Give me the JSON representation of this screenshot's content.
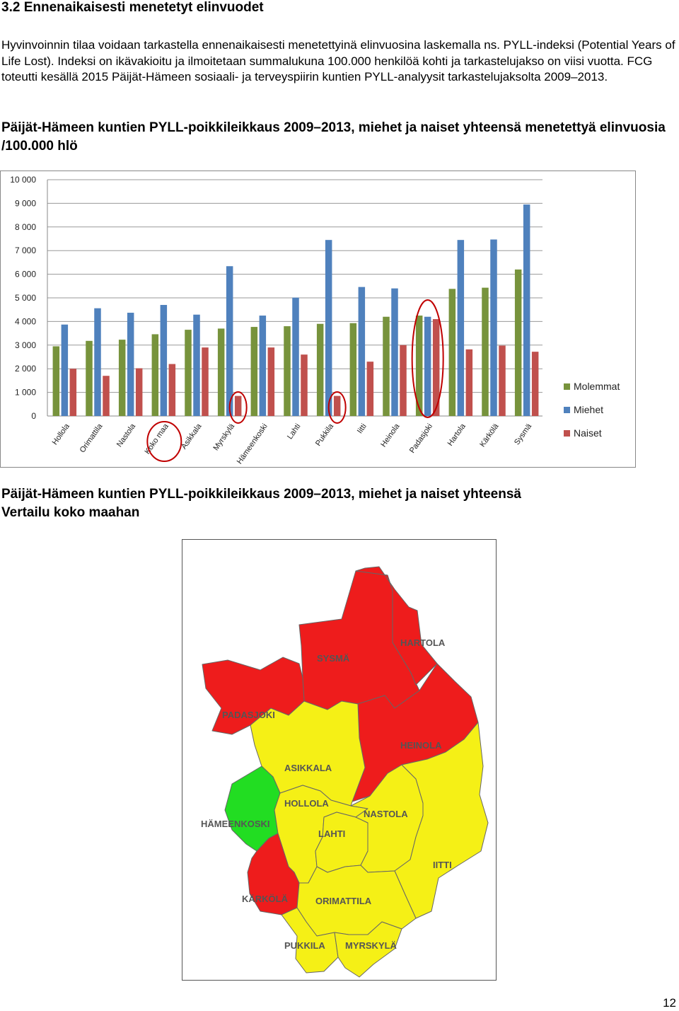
{
  "section": {
    "heading": "3.2 Ennenaikaisesti menetetyt elinvuodet",
    "paragraph": "Hyvinvoinnin tilaa voidaan tarkastella ennenaikaisesti menetettyinä elinvuosina laskemalla ns. PYLL-indeksi (Potential Years of Life Lost). Indeksi on ikävakioitu ja ilmoitetaan summalukuna 100.000 henkilöä kohti ja tarkastelujakso on viisi vuotta.  FCG toteutti kesällä 2015 Päijät-Hämeen sosiaali- ja terveyspiirin kuntien PYLL-analyysit tarkastelujaksolta 2009–2013."
  },
  "figure1": {
    "caption": "Päijät-Hämeen kuntien PYLL-poikkileikkaus 2009–2013, miehet ja naiset yhteensä menetettyä elinvuosia  /100.000 hlö"
  },
  "figure2": {
    "caption_line1": "Päijät-Hämeen kuntien PYLL-poikkileikkaus 2009–2013, miehet ja naiset yhteensä",
    "caption_line2": "Vertailu koko maahan"
  },
  "chart_data": {
    "type": "bar",
    "categories": [
      "Hollola",
      "Orimattila",
      "Nastola",
      "Koko maa",
      "Asikkala",
      "Myrskylä",
      "Hämeenkoski",
      "Lahti",
      "Pukkila",
      "Iitti",
      "Heinola",
      "Padasjoki",
      "Hartola",
      "Kärkölä",
      "Sysmä"
    ],
    "series": [
      {
        "name": "Molemmat",
        "color": "#77933C",
        "values": [
          2950,
          3180,
          3230,
          3460,
          3650,
          3700,
          3770,
          3800,
          3900,
          3930,
          4200,
          4250,
          5380,
          5430,
          6200
        ]
      },
      {
        "name": "Miehet",
        "color": "#4F81BD",
        "values": [
          3870,
          4560,
          4370,
          4700,
          4290,
          6340,
          4250,
          5010,
          7450,
          5460,
          5400,
          4200,
          7450,
          7470,
          8950
        ]
      },
      {
        "name": "Naiset",
        "color": "#C0504D",
        "values": [
          2000,
          1700,
          2020,
          2200,
          2900,
          850,
          2900,
          2600,
          850,
          2300,
          3000,
          4100,
          2820,
          2980,
          2720
        ]
      }
    ],
    "ylim": [
      0,
      10000
    ],
    "yticks": [
      "0",
      "1 000",
      "2 000",
      "3 000",
      "4 000",
      "5 000",
      "6 000",
      "7 000",
      "8 000",
      "9 000",
      "10 000"
    ],
    "grid": true,
    "legend": "right",
    "highlighted": [
      "Koko maa",
      "Myrskylä naiset",
      "Pukkila naiset",
      "Padasjoki"
    ]
  },
  "map": {
    "colors": {
      "red": "#EE1C1C",
      "yellow": "#F5F016",
      "green": "#22DD22"
    },
    "regions": [
      {
        "name": "SYSMÄ",
        "status": "red"
      },
      {
        "name": "HARTOLA",
        "status": "red"
      },
      {
        "name": "PADASJOKI",
        "status": "red"
      },
      {
        "name": "HEINOLA",
        "status": "red"
      },
      {
        "name": "ASIKKALA",
        "status": "yellow"
      },
      {
        "name": "HOLLOLA",
        "status": "green"
      },
      {
        "name": "HÄMEENKOSKI",
        "status": "yellow"
      },
      {
        "name": "LAHTI",
        "status": "yellow"
      },
      {
        "name": "NASTOLA",
        "status": "yellow"
      },
      {
        "name": "IITTI",
        "status": "yellow"
      },
      {
        "name": "KÄRKÖLÄ",
        "status": "red"
      },
      {
        "name": "ORIMATTILA",
        "status": "yellow"
      },
      {
        "name": "PUKKILA",
        "status": "yellow"
      },
      {
        "name": "MYRSKYLÄ",
        "status": "yellow"
      }
    ]
  },
  "page_number": "12"
}
